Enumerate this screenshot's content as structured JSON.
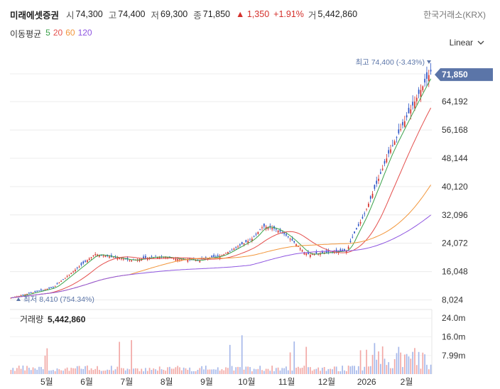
{
  "stock": {
    "name": "미래에셋증권",
    "open_label": "시",
    "open": "74,300",
    "high_label": "고",
    "high": "74,400",
    "low_label": "저",
    "low": "69,300",
    "close_label": "종",
    "close": "71,850",
    "change": "▲ 1,350",
    "change_pct": "+1.91%",
    "volume_label": "거",
    "volume": "5,442,860"
  },
  "exchange": "한국거래소(KRX)",
  "ma": {
    "title": "이동평균",
    "lines": [
      {
        "label": "5",
        "color": "#3aa14a"
      },
      {
        "label": "20",
        "color": "#e4504e"
      },
      {
        "label": "60",
        "color": "#f2963b"
      },
      {
        "label": "120",
        "color": "#8e55e0"
      }
    ]
  },
  "scale_toggle": "Linear",
  "colors": {
    "up": "#d4302b",
    "down": "#2c55c7",
    "accent": "#5b75a8",
    "grid": "#ececec"
  },
  "chart_data": {
    "type": "candlestick",
    "price_axis": {
      "ticks": [
        "8,024",
        "16,048",
        "24,072",
        "32,096",
        "40,120",
        "48,144",
        "56,168",
        "64,192"
      ],
      "range": [
        4500,
        77300
      ]
    },
    "x_ticks": [
      "5월",
      "6월",
      "7월",
      "8월",
      "9월",
      "10월",
      "11월",
      "12월",
      "2026",
      "2월"
    ],
    "last_price": "71,850",
    "max_annotation": "최고 74,400 (-3.43%)",
    "min_annotation": "최저 8,410 (754.34%)",
    "volume_label": "거래량",
    "volume_value": "5,442,860",
    "volume_axis": {
      "ticks": [
        "7.99m",
        "16.0m",
        "24.0m"
      ],
      "range": [
        0,
        26500000
      ]
    },
    "key_closes": [
      {
        "month_index": 0,
        "value": 8600
      },
      {
        "month_index": 1,
        "value": 11500
      },
      {
        "month_index": 2,
        "value": 21000
      },
      {
        "month_index": 3,
        "value": 19000
      },
      {
        "month_index": 4,
        "value": 18500
      },
      {
        "month_index": 5,
        "value": 20500
      },
      {
        "month_index": 6,
        "value": 27000
      },
      {
        "month_index": 7,
        "value": 20800
      },
      {
        "month_index": 8,
        "value": 22000
      },
      {
        "month_index": 9,
        "value": 50000
      },
      {
        "month_index": 10,
        "value": 71850
      }
    ]
  }
}
